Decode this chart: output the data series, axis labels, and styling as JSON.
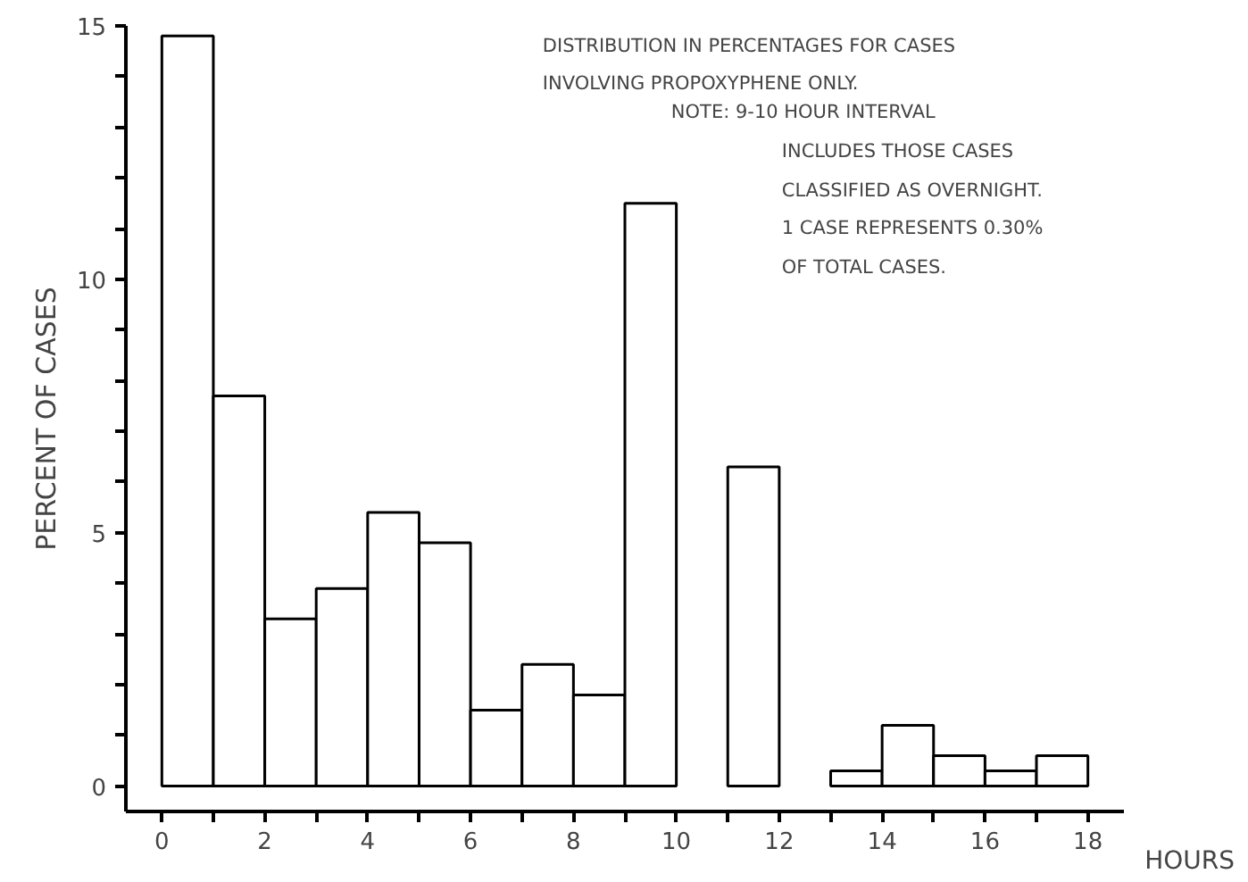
{
  "chart_data": {
    "type": "histogram",
    "bins": [
      0,
      1,
      2,
      3,
      4,
      5,
      6,
      7,
      8,
      9,
      10,
      11,
      12,
      13,
      14,
      15,
      16,
      17,
      18
    ],
    "values": [
      14.8,
      7.7,
      3.3,
      3.9,
      5.4,
      4.8,
      1.5,
      2.4,
      1.8,
      11.5,
      0,
      6.3,
      0,
      0.3,
      1.2,
      0.6,
      0.3,
      0.6
    ],
    "color": "#ffffff",
    "xlabel": "HOURS",
    "ylabel": "PERCENT OF CASES",
    "annotations": [
      "DISTRIBUTION IN PERCENTAGES FOR CASES\nINVOLVING PROPOXYPHENE ONLY.",
      "NOTE: 9-10 HOUR INTERVAL\nINCLUDES THOSE CASES\nCLASSIFIED AS OVERNIGHT.",
      "1 CASE REPRESENTS 0.30%\nOF TOTAL CASES."
    ],
    "xlim": [
      -0.7,
      18.7
    ],
    "ylim": [
      -0.5,
      15
    ],
    "xticks": [
      0,
      {
        "value": 1,
        "label": null
      },
      2,
      {
        "value": 3,
        "label": null
      },
      4,
      {
        "value": 5,
        "label": null
      },
      6,
      {
        "value": 7,
        "label": null
      },
      8,
      {
        "value": 9,
        "label": null
      },
      10,
      {
        "value": 11,
        "label": null
      },
      12,
      {
        "value": 13,
        "label": null
      },
      14,
      {
        "value": 15,
        "label": null
      },
      16,
      {
        "value": 17,
        "label": null
      },
      18
    ],
    "yticks": [
      0,
      {
        "value": 1,
        "label": null
      },
      {
        "value": 2,
        "label": null
      },
      {
        "value": 3,
        "label": null
      },
      {
        "value": 4,
        "label": null
      },
      5,
      {
        "value": 6,
        "label": null
      },
      {
        "value": 7,
        "label": null
      },
      {
        "value": 8,
        "label": null
      },
      {
        "value": 9,
        "label": null
      },
      10,
      {
        "value": 11,
        "label": null
      },
      {
        "value": 12,
        "label": null
      },
      {
        "value": 13,
        "label": null
      },
      {
        "value": 14,
        "label": null
      },
      15
    ],
    "grid": false
  }
}
